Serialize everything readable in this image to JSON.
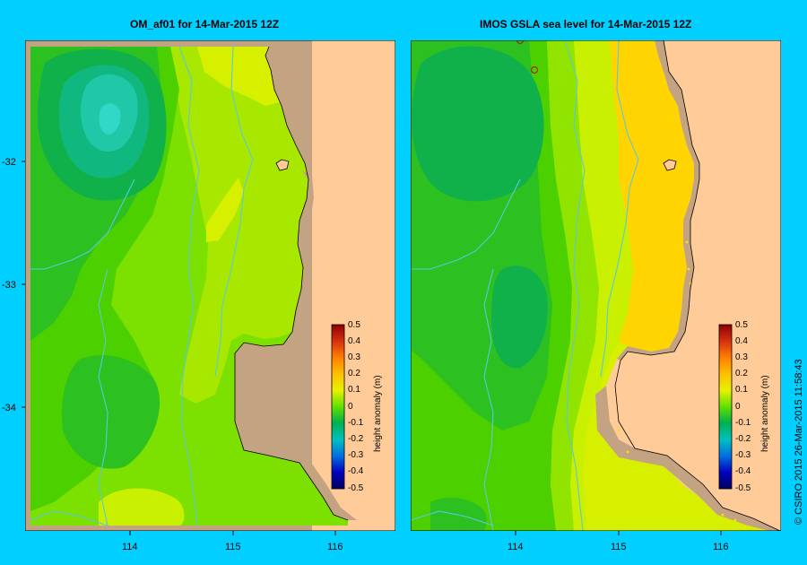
{
  "panels": [
    {
      "id": "model",
      "title": "OM_af01  for 14-Mar-2015 12Z"
    },
    {
      "id": "obs",
      "title": "IMOS GSLA sea level  for 14-Mar-2015 12Z"
    }
  ],
  "axes": {
    "x_ticks": [
      "114",
      "115",
      "116"
    ],
    "y_ticks": [
      "-32",
      "-33",
      "-34"
    ]
  },
  "colorbar": {
    "label": "height anomaly (m)",
    "ticks": [
      "0.5",
      "0.4",
      "0.3",
      "0.2",
      "0.1",
      "0",
      "-0.1",
      "-0.2",
      "-0.3",
      "-0.4",
      "-0.5"
    ],
    "range": [
      -0.5,
      0.5
    ]
  },
  "credit": "© CSIRO 2015   26-Mar-2015 11:58:43",
  "colors": {
    "background": "#00cfff",
    "land": "#ffcc99",
    "shelf": "#c4a383",
    "isobath": "#5cc8dc"
  }
}
